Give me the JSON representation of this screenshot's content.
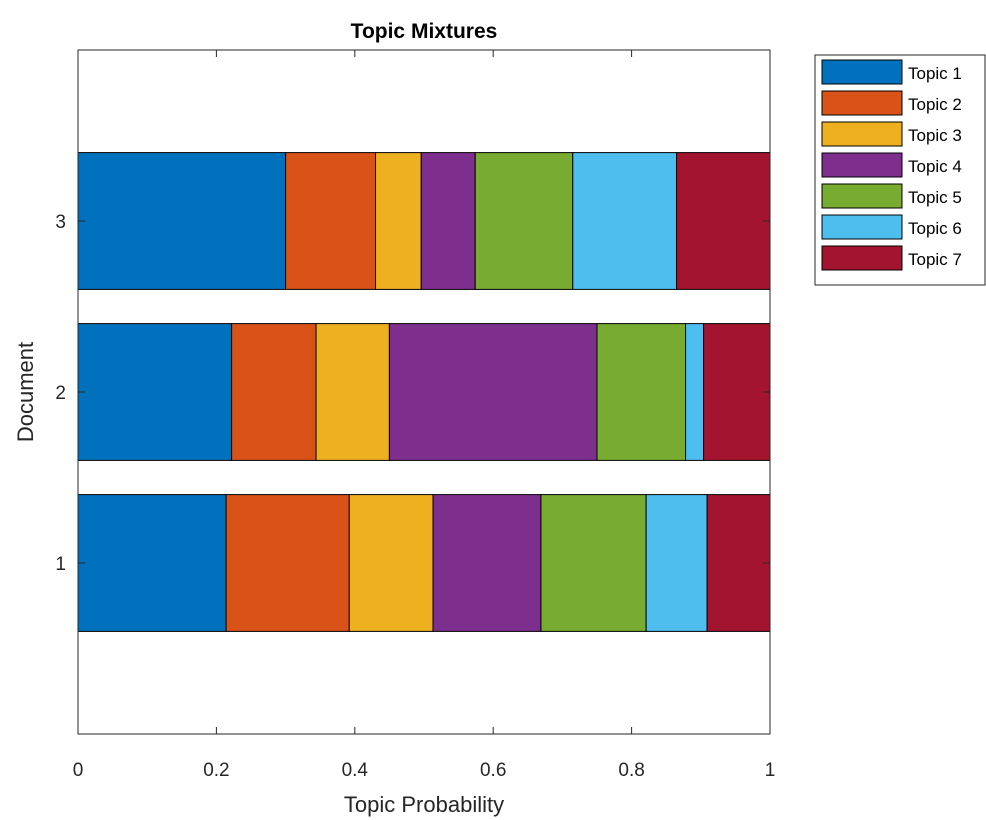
{
  "chart_data": {
    "type": "bar",
    "orientation": "horizontal",
    "stacked": true,
    "title": "Topic Mixtures",
    "xlabel": "Topic Probability",
    "ylabel": "Document",
    "xlim": [
      0,
      1
    ],
    "ylim": [
      0,
      4
    ],
    "xticks": [
      "0",
      "0.2",
      "0.4",
      "0.6",
      "0.8",
      "1"
    ],
    "categories": [
      "1",
      "2",
      "3"
    ],
    "grid": false,
    "legend_position": "outside-top-right",
    "series": [
      {
        "name": "Topic 1",
        "color": "#0072BD",
        "values": [
          0.214,
          0.222,
          0.3
        ]
      },
      {
        "name": "Topic 2",
        "color": "#D95319",
        "values": [
          0.178,
          0.122,
          0.13
        ]
      },
      {
        "name": "Topic 3",
        "color": "#EDB120",
        "values": [
          0.121,
          0.106,
          0.066
        ]
      },
      {
        "name": "Topic 4",
        "color": "#7E2F8E",
        "values": [
          0.156,
          0.3,
          0.078
        ]
      },
      {
        "name": "Topic 5",
        "color": "#77AC30",
        "values": [
          0.152,
          0.128,
          0.141
        ]
      },
      {
        "name": "Topic 6",
        "color": "#4DBEEE",
        "values": [
          0.088,
          0.026,
          0.15
        ]
      },
      {
        "name": "Topic 7",
        "color": "#A2142F",
        "values": [
          0.091,
          0.096,
          0.135
        ]
      }
    ]
  }
}
